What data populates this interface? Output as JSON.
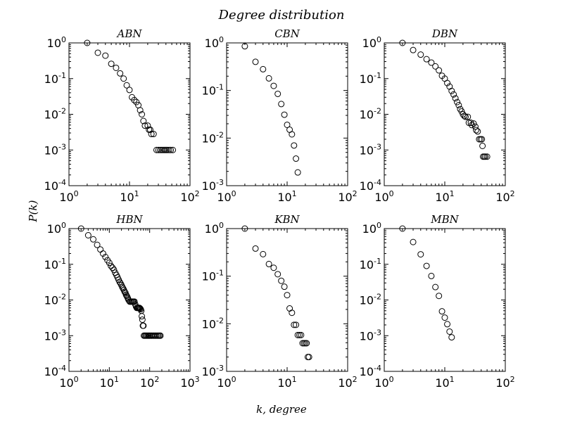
{
  "figure": {
    "title": "Degree distribution",
    "xlabel": "k, degree",
    "ylabel": "P(k)"
  },
  "chart_data": [
    {
      "type": "scatter",
      "title": "ABN",
      "xscale": "log",
      "yscale": "log",
      "xlim": [
        1,
        100
      ],
      "ylim": [
        0.0001,
        1
      ],
      "xticks": [
        [
          "10",
          "0"
        ],
        [
          "10",
          "1"
        ],
        [
          "10",
          "2"
        ]
      ],
      "yticks": [
        [
          "10",
          "-4"
        ],
        [
          "10",
          "-3"
        ],
        [
          "10",
          "-2"
        ],
        [
          "10",
          "-1"
        ],
        [
          "10",
          "0"
        ]
      ],
      "points": [
        [
          2,
          1
        ],
        [
          3,
          0.53
        ],
        [
          4,
          0.44
        ],
        [
          5,
          0.26
        ],
        [
          6,
          0.2
        ],
        [
          7,
          0.14
        ],
        [
          8,
          0.1
        ],
        [
          9,
          0.065
        ],
        [
          10,
          0.048
        ],
        [
          11,
          0.03
        ],
        [
          12,
          0.025
        ],
        [
          13,
          0.022
        ],
        [
          14,
          0.018
        ],
        [
          15,
          0.013
        ],
        [
          16,
          0.01
        ],
        [
          17,
          0.0065
        ],
        [
          18,
          0.0048
        ],
        [
          20,
          0.0048
        ],
        [
          21,
          0.0037
        ],
        [
          22,
          0.0037
        ],
        [
          23,
          0.0028
        ],
        [
          25,
          0.0028
        ],
        [
          28,
          0.001
        ],
        [
          30,
          0.001
        ],
        [
          32,
          0.001
        ],
        [
          34,
          0.001
        ],
        [
          36,
          0.001
        ],
        [
          38,
          0.001
        ],
        [
          40,
          0.001
        ],
        [
          42,
          0.001
        ],
        [
          45,
          0.001
        ],
        [
          48,
          0.001
        ],
        [
          52,
          0.001
        ]
      ]
    },
    {
      "type": "scatter",
      "title": "CBN",
      "xscale": "log",
      "yscale": "log",
      "xlim": [
        1,
        100
      ],
      "ylim": [
        0.001,
        1
      ],
      "xticks": [
        [
          "10",
          "0"
        ],
        [
          "10",
          "1"
        ],
        [
          "10",
          "2"
        ]
      ],
      "yticks": [
        [
          "10",
          "-3"
        ],
        [
          "10",
          "-2"
        ],
        [
          "10",
          "-1"
        ],
        [
          "10",
          "0"
        ]
      ],
      "points": [
        [
          2,
          0.85
        ],
        [
          3,
          0.4
        ],
        [
          4,
          0.28
        ],
        [
          5,
          0.18
        ],
        [
          6,
          0.125
        ],
        [
          7,
          0.085
        ],
        [
          8,
          0.052
        ],
        [
          9,
          0.031
        ],
        [
          10,
          0.019
        ],
        [
          11,
          0.015
        ],
        [
          12,
          0.012
        ],
        [
          13,
          0.007
        ],
        [
          14,
          0.0037
        ],
        [
          15,
          0.0019
        ]
      ]
    },
    {
      "type": "scatter",
      "title": "DBN",
      "xscale": "log",
      "yscale": "log",
      "xlim": [
        1,
        100
      ],
      "ylim": [
        0.0001,
        1
      ],
      "xticks": [
        [
          "10",
          "0"
        ],
        [
          "10",
          "1"
        ],
        [
          "10",
          "2"
        ]
      ],
      "yticks": [
        [
          "10",
          "-4"
        ],
        [
          "10",
          "-3"
        ],
        [
          "10",
          "-2"
        ],
        [
          "10",
          "-1"
        ],
        [
          "10",
          "0"
        ]
      ],
      "points": [
        [
          2,
          1
        ],
        [
          3,
          0.63
        ],
        [
          4,
          0.47
        ],
        [
          5,
          0.35
        ],
        [
          6,
          0.28
        ],
        [
          7,
          0.22
        ],
        [
          8,
          0.17
        ],
        [
          9,
          0.12
        ],
        [
          10,
          0.1
        ],
        [
          11,
          0.075
        ],
        [
          12,
          0.06
        ],
        [
          13,
          0.045
        ],
        [
          14,
          0.036
        ],
        [
          15,
          0.028
        ],
        [
          16,
          0.022
        ],
        [
          17,
          0.018
        ],
        [
          18,
          0.014
        ],
        [
          19,
          0.012
        ],
        [
          20,
          0.01
        ],
        [
          21,
          0.009
        ],
        [
          22,
          0.0085
        ],
        [
          24,
          0.0085
        ],
        [
          25,
          0.0058
        ],
        [
          27,
          0.0058
        ],
        [
          28,
          0.005
        ],
        [
          30,
          0.0055
        ],
        [
          32,
          0.0045
        ],
        [
          33,
          0.0036
        ],
        [
          35,
          0.0033
        ],
        [
          37,
          0.002
        ],
        [
          39,
          0.002
        ],
        [
          41,
          0.002
        ],
        [
          42,
          0.0013
        ],
        [
          43,
          0.00065
        ],
        [
          45,
          0.00065
        ],
        [
          47,
          0.00065
        ],
        [
          50,
          0.00065
        ]
      ]
    },
    {
      "type": "scatter",
      "title": "HBN",
      "xscale": "log",
      "yscale": "log",
      "xlim": [
        1,
        1000
      ],
      "ylim": [
        0.0001,
        1
      ],
      "xticks": [
        [
          "10",
          "0"
        ],
        [
          "10",
          "1"
        ],
        [
          "10",
          "2"
        ],
        [
          "10",
          "3"
        ]
      ],
      "yticks": [
        [
          "10",
          "-4"
        ],
        [
          "10",
          "-3"
        ],
        [
          "10",
          "-2"
        ],
        [
          "10",
          "-1"
        ],
        [
          "10",
          "0"
        ]
      ],
      "points": [
        [
          2,
          1
        ],
        [
          3,
          0.65
        ],
        [
          4,
          0.5
        ],
        [
          5,
          0.35
        ],
        [
          6,
          0.26
        ],
        [
          7,
          0.2
        ],
        [
          8,
          0.16
        ],
        [
          9,
          0.13
        ],
        [
          10,
          0.11
        ],
        [
          11,
          0.09
        ],
        [
          12,
          0.08
        ],
        [
          13,
          0.07
        ],
        [
          14,
          0.058
        ],
        [
          15,
          0.05
        ],
        [
          16,
          0.043
        ],
        [
          17,
          0.037
        ],
        [
          18,
          0.032
        ],
        [
          19,
          0.029
        ],
        [
          20,
          0.026
        ],
        [
          21,
          0.023
        ],
        [
          22,
          0.021
        ],
        [
          23,
          0.019
        ],
        [
          24,
          0.017
        ],
        [
          25,
          0.016
        ],
        [
          26,
          0.014
        ],
        [
          27,
          0.013
        ],
        [
          28,
          0.012
        ],
        [
          29,
          0.011
        ],
        [
          30,
          0.01
        ],
        [
          32,
          0.009
        ],
        [
          34,
          0.009
        ],
        [
          36,
          0.009
        ],
        [
          38,
          0.009
        ],
        [
          40,
          0.009
        ],
        [
          42,
          0.009
        ],
        [
          44,
          0.0075
        ],
        [
          46,
          0.0065
        ],
        [
          48,
          0.006
        ],
        [
          50,
          0.006
        ],
        [
          52,
          0.006
        ],
        [
          54,
          0.006
        ],
        [
          56,
          0.006
        ],
        [
          58,
          0.0058
        ],
        [
          60,
          0.0055
        ],
        [
          62,
          0.005
        ],
        [
          64,
          0.0035
        ],
        [
          66,
          0.0028
        ],
        [
          68,
          0.0019
        ],
        [
          70,
          0.0019
        ],
        [
          72,
          0.001
        ],
        [
          76,
          0.001
        ],
        [
          80,
          0.001
        ],
        [
          85,
          0.001
        ],
        [
          90,
          0.001
        ],
        [
          95,
          0.001
        ],
        [
          100,
          0.001
        ],
        [
          106,
          0.001
        ],
        [
          112,
          0.001
        ],
        [
          120,
          0.001
        ],
        [
          128,
          0.001
        ],
        [
          136,
          0.001
        ],
        [
          145,
          0.001
        ],
        [
          155,
          0.001
        ],
        [
          165,
          0.001
        ],
        [
          175,
          0.001
        ],
        [
          185,
          0.001
        ]
      ]
    },
    {
      "type": "scatter",
      "title": "KBN",
      "xscale": "log",
      "yscale": "log",
      "xlim": [
        1,
        100
      ],
      "ylim": [
        0.001,
        1
      ],
      "xticks": [
        [
          "10",
          "0"
        ],
        [
          "10",
          "1"
        ],
        [
          "10",
          "2"
        ]
      ],
      "yticks": [
        [
          "10",
          "-3"
        ],
        [
          "10",
          "-2"
        ],
        [
          "10",
          "-1"
        ],
        [
          "10",
          "0"
        ]
      ],
      "points": [
        [
          2,
          1
        ],
        [
          3,
          0.38
        ],
        [
          4,
          0.29
        ],
        [
          5,
          0.18
        ],
        [
          6,
          0.15
        ],
        [
          7,
          0.11
        ],
        [
          8,
          0.08
        ],
        [
          9,
          0.06
        ],
        [
          10,
          0.04
        ],
        [
          11,
          0.021
        ],
        [
          12,
          0.017
        ],
        [
          13,
          0.0095
        ],
        [
          14,
          0.0095
        ],
        [
          15,
          0.0058
        ],
        [
          16,
          0.0058
        ],
        [
          17,
          0.0058
        ],
        [
          18,
          0.0039
        ],
        [
          19,
          0.0039
        ],
        [
          20,
          0.0039
        ],
        [
          21,
          0.0039
        ],
        [
          22,
          0.002
        ],
        [
          23,
          0.002
        ]
      ]
    },
    {
      "type": "scatter",
      "title": "MBN",
      "xscale": "log",
      "yscale": "log",
      "xlim": [
        1,
        100
      ],
      "ylim": [
        0.0001,
        1
      ],
      "xticks": [
        [
          "10",
          "0"
        ],
        [
          "10",
          "1"
        ],
        [
          "10",
          "2"
        ]
      ],
      "yticks": [
        [
          "10",
          "-4"
        ],
        [
          "10",
          "-3"
        ],
        [
          "10",
          "-2"
        ],
        [
          "10",
          "-1"
        ],
        [
          "10",
          "0"
        ]
      ],
      "points": [
        [
          2,
          1
        ],
        [
          3,
          0.42
        ],
        [
          4,
          0.19
        ],
        [
          5,
          0.09
        ],
        [
          6,
          0.047
        ],
        [
          7,
          0.023
        ],
        [
          8,
          0.013
        ],
        [
          9,
          0.0048
        ],
        [
          10,
          0.0032
        ],
        [
          11,
          0.0021
        ],
        [
          12,
          0.0013
        ],
        [
          13,
          0.0009
        ]
      ]
    }
  ]
}
